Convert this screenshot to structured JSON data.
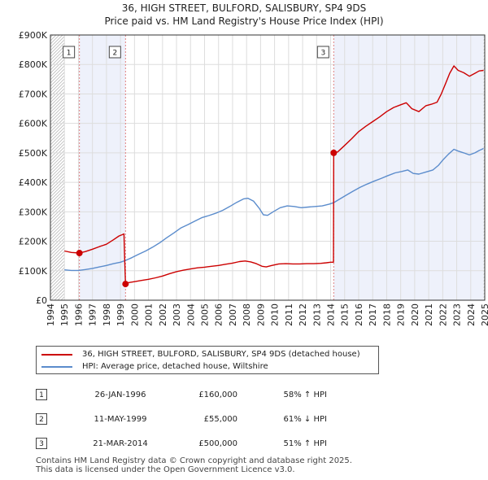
{
  "chart_data": {
    "type": "line",
    "title": "36, HIGH STREET, BULFORD, SALISBURY, SP4 9DS",
    "subtitle": "Price paid vs. HM Land Registry's House Price Index (HPI)",
    "xlim": [
      1994,
      2025
    ],
    "ylim": [
      0,
      900000
    ],
    "y_ticks": [
      {
        "value": 0,
        "label": "£0"
      },
      {
        "value": 100000,
        "label": "£100K"
      },
      {
        "value": 200000,
        "label": "£200K"
      },
      {
        "value": 300000,
        "label": "£300K"
      },
      {
        "value": 400000,
        "label": "£400K"
      },
      {
        "value": 500000,
        "label": "£500K"
      },
      {
        "value": 600000,
        "label": "£600K"
      },
      {
        "value": 700000,
        "label": "£700K"
      },
      {
        "value": 800000,
        "label": "£800K"
      },
      {
        "value": 900000,
        "label": "£900K"
      }
    ],
    "x_ticks": [
      1994,
      1995,
      1996,
      1997,
      1998,
      1999,
      2000,
      2001,
      2002,
      2003,
      2004,
      2005,
      2006,
      2007,
      2008,
      2009,
      2010,
      2011,
      2012,
      2013,
      2014,
      2015,
      2016,
      2017,
      2018,
      2019,
      2020,
      2021,
      2022,
      2023,
      2024,
      2025
    ],
    "hatched_before": 1995.0,
    "hatched_after": 2024.92,
    "shaded_ranges": [
      [
        1996.07,
        1999.36
      ],
      [
        2014.22,
        2024.92
      ]
    ],
    "series": [
      {
        "name": "36, HIGH STREET, BULFORD, SALISBURY, SP4 9DS (detached house)",
        "color": "#cc0000",
        "points": [
          [
            1995.0,
            167000
          ],
          [
            1995.5,
            162000
          ],
          [
            1996.07,
            160000
          ],
          [
            1996.5,
            165000
          ],
          [
            1997.0,
            173000
          ],
          [
            1997.5,
            182000
          ],
          [
            1998.0,
            190000
          ],
          [
            1998.5,
            205000
          ],
          [
            1998.9,
            218000
          ],
          [
            1999.1,
            222000
          ],
          [
            1999.25,
            225000
          ],
          [
            1999.3,
            140000
          ],
          [
            1999.36,
            55000
          ],
          [
            1999.6,
            60000
          ],
          [
            2000.0,
            63000
          ],
          [
            2000.5,
            67000
          ],
          [
            2001.0,
            71000
          ],
          [
            2001.5,
            76000
          ],
          [
            2002.0,
            82000
          ],
          [
            2002.5,
            90000
          ],
          [
            2003.0,
            97000
          ],
          [
            2003.5,
            102000
          ],
          [
            2004.0,
            106000
          ],
          [
            2004.5,
            110000
          ],
          [
            2005.0,
            112000
          ],
          [
            2005.5,
            115000
          ],
          [
            2006.0,
            118000
          ],
          [
            2006.5,
            122000
          ],
          [
            2007.0,
            126000
          ],
          [
            2007.5,
            131000
          ],
          [
            2007.9,
            133000
          ],
          [
            2008.3,
            130000
          ],
          [
            2008.7,
            124000
          ],
          [
            2009.1,
            115000
          ],
          [
            2009.4,
            113000
          ],
          [
            2009.8,
            118000
          ],
          [
            2010.3,
            123000
          ],
          [
            2010.8,
            124000
          ],
          [
            2011.3,
            123000
          ],
          [
            2011.8,
            123000
          ],
          [
            2012.3,
            124000
          ],
          [
            2012.8,
            124000
          ],
          [
            2013.3,
            125000
          ],
          [
            2013.7,
            127000
          ],
          [
            2014.0,
            129000
          ],
          [
            2014.2,
            129000
          ],
          [
            2014.22,
            500000
          ],
          [
            2014.5,
            503000
          ],
          [
            2015.0,
            525000
          ],
          [
            2015.5,
            548000
          ],
          [
            2016.0,
            572000
          ],
          [
            2016.5,
            590000
          ],
          [
            2017.0,
            606000
          ],
          [
            2017.5,
            622000
          ],
          [
            2018.0,
            640000
          ],
          [
            2018.5,
            654000
          ],
          [
            2019.0,
            663000
          ],
          [
            2019.4,
            670000
          ],
          [
            2019.8,
            650000
          ],
          [
            2020.3,
            640000
          ],
          [
            2020.8,
            660000
          ],
          [
            2021.2,
            665000
          ],
          [
            2021.6,
            672000
          ],
          [
            2021.9,
            700000
          ],
          [
            2022.2,
            735000
          ],
          [
            2022.5,
            770000
          ],
          [
            2022.8,
            795000
          ],
          [
            2023.1,
            780000
          ],
          [
            2023.5,
            772000
          ],
          [
            2023.9,
            760000
          ],
          [
            2024.3,
            770000
          ],
          [
            2024.6,
            778000
          ],
          [
            2024.92,
            780000
          ]
        ]
      },
      {
        "name": "HPI: Average price, detached house, Wiltshire",
        "color": "#5b8ccc",
        "points": [
          [
            1995.0,
            103000
          ],
          [
            1995.5,
            101000
          ],
          [
            1996.0,
            101000
          ],
          [
            1996.5,
            104000
          ],
          [
            1997.0,
            108000
          ],
          [
            1997.5,
            113000
          ],
          [
            1998.0,
            118000
          ],
          [
            1998.5,
            124000
          ],
          [
            1999.0,
            129000
          ],
          [
            1999.36,
            135000
          ],
          [
            1999.8,
            144000
          ],
          [
            2000.3,
            156000
          ],
          [
            2000.8,
            167000
          ],
          [
            2001.3,
            180000
          ],
          [
            2001.8,
            195000
          ],
          [
            2002.3,
            212000
          ],
          [
            2002.8,
            228000
          ],
          [
            2003.3,
            245000
          ],
          [
            2003.8,
            256000
          ],
          [
            2004.3,
            268000
          ],
          [
            2004.8,
            280000
          ],
          [
            2005.3,
            287000
          ],
          [
            2005.8,
            295000
          ],
          [
            2006.3,
            305000
          ],
          [
            2006.8,
            318000
          ],
          [
            2007.3,
            332000
          ],
          [
            2007.8,
            344000
          ],
          [
            2008.1,
            346000
          ],
          [
            2008.5,
            336000
          ],
          [
            2008.9,
            312000
          ],
          [
            2009.2,
            290000
          ],
          [
            2009.5,
            288000
          ],
          [
            2009.9,
            300000
          ],
          [
            2010.4,
            314000
          ],
          [
            2010.9,
            320000
          ],
          [
            2011.4,
            318000
          ],
          [
            2011.9,
            314000
          ],
          [
            2012.4,
            316000
          ],
          [
            2012.9,
            318000
          ],
          [
            2013.4,
            320000
          ],
          [
            2013.9,
            326000
          ],
          [
            2014.22,
            331000
          ],
          [
            2014.6,
            342000
          ],
          [
            2015.1,
            356000
          ],
          [
            2015.6,
            370000
          ],
          [
            2016.1,
            383000
          ],
          [
            2016.6,
            394000
          ],
          [
            2017.1,
            404000
          ],
          [
            2017.6,
            413000
          ],
          [
            2018.1,
            423000
          ],
          [
            2018.6,
            432000
          ],
          [
            2019.1,
            437000
          ],
          [
            2019.5,
            442000
          ],
          [
            2019.9,
            430000
          ],
          [
            2020.3,
            428000
          ],
          [
            2020.8,
            435000
          ],
          [
            2021.3,
            442000
          ],
          [
            2021.7,
            458000
          ],
          [
            2022.0,
            475000
          ],
          [
            2022.4,
            495000
          ],
          [
            2022.8,
            512000
          ],
          [
            2023.1,
            506000
          ],
          [
            2023.5,
            500000
          ],
          [
            2023.9,
            493000
          ],
          [
            2024.3,
            500000
          ],
          [
            2024.6,
            508000
          ],
          [
            2024.92,
            515000
          ]
        ]
      }
    ],
    "sales": [
      {
        "id": "1",
        "year": 1996.07,
        "price": 160000
      },
      {
        "id": "2",
        "year": 1999.36,
        "price": 55000
      },
      {
        "id": "3",
        "year": 2014.22,
        "price": 500000
      }
    ]
  },
  "legend": {
    "line1": "36, HIGH STREET, BULFORD, SALISBURY, SP4 9DS (detached house)",
    "line2": "HPI: Average price, detached house, Wiltshire"
  },
  "table": [
    {
      "num": "1",
      "date": "26-JAN-1996",
      "price": "£160,000",
      "hpi": "58% ↑ HPI"
    },
    {
      "num": "2",
      "date": "11-MAY-1999",
      "price": "£55,000",
      "hpi": "61% ↓ HPI"
    },
    {
      "num": "3",
      "date": "21-MAR-2014",
      "price": "£500,000",
      "hpi": "51% ↑ HPI"
    }
  ],
  "footer": {
    "line1": "Contains HM Land Registry data © Crown copyright and database right 2025.",
    "line2": "This data is licensed under the Open Government Licence v3.0."
  }
}
